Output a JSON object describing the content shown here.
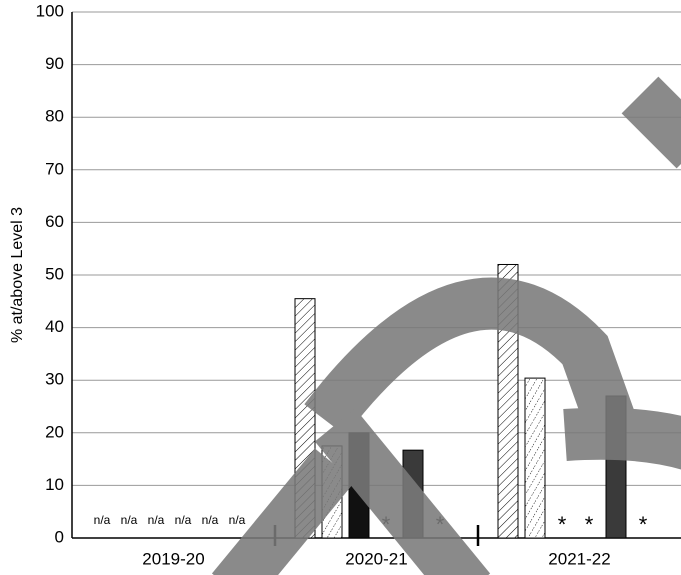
{
  "chart_data": {
    "type": "bar",
    "y_label": "% at/above Level 3",
    "categories": [
      "2019-20",
      "2020-21",
      "2021-22"
    ],
    "series": [
      {
        "pattern": "hatch",
        "color": "#000000",
        "values": [
          null,
          45.5,
          52
        ],
        "value_labels": [
          "n/a",
          null,
          null
        ]
      },
      {
        "pattern": "dots",
        "color": "#000000",
        "values": [
          null,
          17.5,
          30.4
        ],
        "value_labels": [
          "n/a",
          null,
          null
        ]
      },
      {
        "pattern": "solid",
        "color": "#111111",
        "values": [
          null,
          20,
          null
        ],
        "value_labels": [
          "n/a",
          null,
          "*"
        ]
      },
      {
        "pattern": "solid",
        "color": "#111111",
        "values": [
          null,
          null,
          null
        ],
        "value_labels": [
          "n/a",
          "*",
          "*"
        ]
      },
      {
        "pattern": "solid",
        "color": "#3a3a3a",
        "values": [
          null,
          16.7,
          27
        ],
        "value_labels": [
          "n/a",
          null,
          null
        ]
      },
      {
        "pattern": "solid",
        "color": "#3a3a3a",
        "values": [
          null,
          null,
          null
        ],
        "value_labels": [
          "n/a",
          "*",
          "*"
        ]
      }
    ],
    "ylim": [
      0,
      100
    ],
    "yticks": [
      0,
      10,
      20,
      30,
      40,
      50,
      60,
      70,
      80,
      90,
      100
    ],
    "grid": true
  }
}
